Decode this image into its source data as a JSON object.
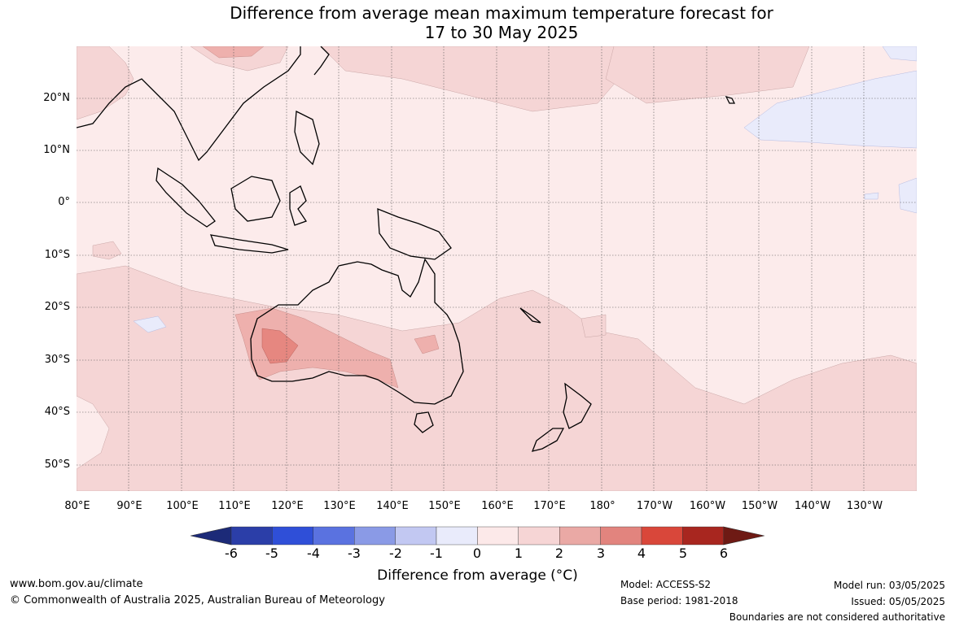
{
  "title": {
    "line1": "Difference from average mean maximum temperature forecast for",
    "line2": "17 to 30 May 2025"
  },
  "axes": {
    "lat_labels": [
      "20°N",
      "10°N",
      "0°",
      "10°S",
      "20°S",
      "30°S",
      "40°S",
      "50°S"
    ],
    "lon_labels": [
      "80°E",
      "90°E",
      "100°E",
      "110°E",
      "120°E",
      "130°E",
      "140°E",
      "150°E",
      "160°E",
      "170°E",
      "180°",
      "170°W",
      "160°W",
      "150°W",
      "140°W",
      "130°W"
    ]
  },
  "colorbar": {
    "ticks": [
      "-6",
      "-5",
      "-4",
      "-3",
      "-2",
      "-1",
      "0",
      "1",
      "2",
      "3",
      "4",
      "5",
      "6"
    ],
    "label": "Difference from average (°C)",
    "colors": [
      "#1c2a78",
      "#2b3ea8",
      "#2f4fd8",
      "#5a72e0",
      "#8a9ae6",
      "#c2c8f2",
      "#e9ebfb",
      "#fce9e9",
      "#f6d5d5",
      "#eaa9a5",
      "#e2847e",
      "#d9473a",
      "#a8261f",
      "#6e1a14"
    ]
  },
  "map": {
    "ocean_color": "#fcebeb",
    "land_background": "#fcebeb",
    "anomaly_1_2_color": "#f5d5d5",
    "anomaly_2_3_color": "#eeb0ad",
    "anomaly_3_4_color": "#e68780",
    "anomaly_neg_color": "#e9ebfb",
    "coastline_color": "#000000",
    "grid_style": "dotted"
  },
  "footer": {
    "website": "www.bom.gov.au/climate",
    "copyright": "© Commonwealth of Australia 2025, Australian Bureau of Meteorology",
    "model": "Model: ACCESS-S2",
    "base_period": "Base period: 1981-2018",
    "model_run": "Model run: 03/05/2025",
    "issued": "Issued: 05/05/2025",
    "disclaimer": "Boundaries are not considered authoritative"
  }
}
